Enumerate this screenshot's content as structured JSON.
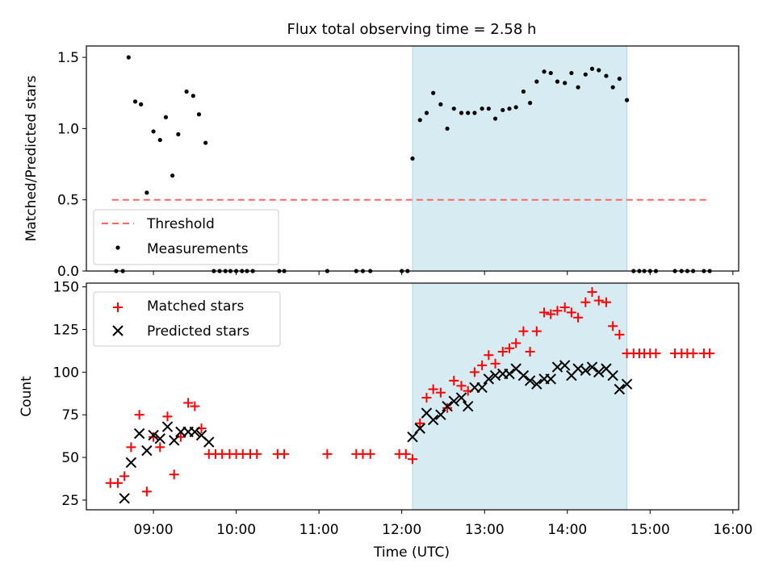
{
  "figure": {
    "title": "Flux total observing time = 2.58 h",
    "xlabel": "Time (UTC)",
    "x_tick_labels": [
      "09:00",
      "10:00",
      "11:00",
      "12:00",
      "13:00",
      "14:00",
      "15:00",
      "16:00"
    ]
  },
  "chart_data": [
    {
      "type": "scatter",
      "x_unit": "hours UTC (decimal)",
      "ylabel": "Matched/Predicted stars",
      "ylim": [
        0,
        1.58
      ],
      "xlim": [
        8.19,
        16.07
      ],
      "y_ticks": [
        0.0,
        0.5,
        1.0,
        1.5
      ],
      "y_tick_labels": [
        "0.0",
        "0.5",
        "1.0",
        "1.5"
      ],
      "shaded_interval": {
        "x": [
          12.13,
          14.72
        ],
        "color": "#add8e6"
      },
      "threshold": {
        "name": "Threshold",
        "y": 0.5,
        "x_range": [
          8.5,
          15.72
        ],
        "color": "#ff6666"
      },
      "series": [
        {
          "name": "Measurements",
          "marker": "dot",
          "color": "#000000",
          "points": [
            [
              8.55,
              0
            ],
            [
              8.63,
              0
            ],
            [
              8.7,
              1.5
            ],
            [
              8.78,
              1.19
            ],
            [
              8.85,
              1.17
            ],
            [
              8.92,
              0.55
            ],
            [
              9.0,
              0.98
            ],
            [
              9.08,
              0.92
            ],
            [
              9.15,
              1.08
            ],
            [
              9.23,
              0.67
            ],
            [
              9.3,
              0.96
            ],
            [
              9.4,
              1.26
            ],
            [
              9.48,
              1.23
            ],
            [
              9.55,
              1.1
            ],
            [
              9.63,
              0.9
            ],
            [
              9.73,
              0
            ],
            [
              9.8,
              0
            ],
            [
              9.87,
              0
            ],
            [
              9.93,
              0
            ],
            [
              10.0,
              0
            ],
            [
              10.07,
              0
            ],
            [
              10.13,
              0
            ],
            [
              10.2,
              0
            ],
            [
              10.52,
              0
            ],
            [
              10.58,
              0
            ],
            [
              11.1,
              0
            ],
            [
              11.45,
              0
            ],
            [
              11.53,
              0
            ],
            [
              11.62,
              0
            ],
            [
              12.0,
              0
            ],
            [
              12.07,
              0
            ],
            [
              12.13,
              0.79
            ],
            [
              12.22,
              1.06
            ],
            [
              12.3,
              1.11
            ],
            [
              12.38,
              1.25
            ],
            [
              12.47,
              1.17
            ],
            [
              12.55,
              1.0
            ],
            [
              12.63,
              1.14
            ],
            [
              12.72,
              1.11
            ],
            [
              12.8,
              1.11
            ],
            [
              12.88,
              1.11
            ],
            [
              12.97,
              1.14
            ],
            [
              13.05,
              1.14
            ],
            [
              13.13,
              1.07
            ],
            [
              13.22,
              1.13
            ],
            [
              13.3,
              1.14
            ],
            [
              13.38,
              1.15
            ],
            [
              13.47,
              1.26
            ],
            [
              13.55,
              1.18
            ],
            [
              13.63,
              1.33
            ],
            [
              13.72,
              1.4
            ],
            [
              13.8,
              1.39
            ],
            [
              13.88,
              1.33
            ],
            [
              13.97,
              1.32
            ],
            [
              14.05,
              1.39
            ],
            [
              14.13,
              1.29
            ],
            [
              14.22,
              1.38
            ],
            [
              14.3,
              1.42
            ],
            [
              14.38,
              1.41
            ],
            [
              14.47,
              1.37
            ],
            [
              14.55,
              1.29
            ],
            [
              14.63,
              1.35
            ],
            [
              14.72,
              1.2
            ],
            [
              14.8,
              0
            ],
            [
              14.87,
              0
            ],
            [
              14.93,
              0
            ],
            [
              15.0,
              0
            ],
            [
              15.07,
              0
            ],
            [
              15.3,
              0
            ],
            [
              15.38,
              0
            ],
            [
              15.45,
              0
            ],
            [
              15.52,
              0
            ],
            [
              15.65,
              0
            ],
            [
              15.72,
              0
            ]
          ]
        }
      ],
      "legend": {
        "location": "lower-left",
        "entries": [
          "Threshold",
          "Measurements"
        ]
      }
    },
    {
      "type": "scatter",
      "x_unit": "hours UTC (decimal)",
      "ylabel": "Count",
      "ylim": [
        19.3,
        152.2
      ],
      "xlim": [
        8.19,
        16.07
      ],
      "y_ticks": [
        25,
        50,
        75,
        100,
        125,
        150
      ],
      "y_tick_labels": [
        "25",
        "50",
        "75",
        "100",
        "125",
        "150"
      ],
      "shaded_interval": {
        "x": [
          12.13,
          14.72
        ],
        "color": "#add8e6"
      },
      "series": [
        {
          "name": "Matched stars",
          "marker": "plus",
          "color": "#ff0000",
          "points": [
            [
              8.48,
              35
            ],
            [
              8.57,
              35
            ],
            [
              8.65,
              39
            ],
            [
              8.73,
              56
            ],
            [
              8.83,
              75
            ],
            [
              8.92,
              30
            ],
            [
              9.0,
              62
            ],
            [
              9.08,
              56
            ],
            [
              9.17,
              74
            ],
            [
              9.25,
              40
            ],
            [
              9.33,
              62
            ],
            [
              9.42,
              82
            ],
            [
              9.5,
              80
            ],
            [
              9.58,
              67
            ],
            [
              9.67,
              52
            ],
            [
              9.75,
              52
            ],
            [
              9.83,
              52
            ],
            [
              9.92,
              52
            ],
            [
              10.0,
              52
            ],
            [
              10.08,
              52
            ],
            [
              10.17,
              52
            ],
            [
              10.25,
              52
            ],
            [
              10.5,
              52
            ],
            [
              10.58,
              52
            ],
            [
              11.1,
              52
            ],
            [
              11.45,
              52
            ],
            [
              11.53,
              52
            ],
            [
              11.62,
              52
            ],
            [
              11.97,
              52
            ],
            [
              12.05,
              52
            ],
            [
              12.13,
              49
            ],
            [
              12.22,
              70
            ],
            [
              12.3,
              85
            ],
            [
              12.38,
              90
            ],
            [
              12.47,
              88
            ],
            [
              12.55,
              79
            ],
            [
              12.63,
              95
            ],
            [
              12.72,
              92
            ],
            [
              12.8,
              89
            ],
            [
              12.88,
              100
            ],
            [
              12.97,
              104
            ],
            [
              13.05,
              110
            ],
            [
              13.13,
              105
            ],
            [
              13.22,
              112
            ],
            [
              13.3,
              114
            ],
            [
              13.38,
              117
            ],
            [
              13.47,
              124
            ],
            [
              13.55,
              112
            ],
            [
              13.63,
              124
            ],
            [
              13.72,
              135
            ],
            [
              13.8,
              134
            ],
            [
              13.88,
              136
            ],
            [
              13.97,
              138
            ],
            [
              14.05,
              135
            ],
            [
              14.13,
              132
            ],
            [
              14.22,
              141
            ],
            [
              14.3,
              147
            ],
            [
              14.38,
              142
            ],
            [
              14.47,
              141
            ],
            [
              14.55,
              127
            ],
            [
              14.63,
              122
            ],
            [
              14.72,
              111
            ],
            [
              14.8,
              111
            ],
            [
              14.87,
              111
            ],
            [
              14.93,
              111
            ],
            [
              15.0,
              111
            ],
            [
              15.07,
              111
            ],
            [
              15.3,
              111
            ],
            [
              15.38,
              111
            ],
            [
              15.45,
              111
            ],
            [
              15.52,
              111
            ],
            [
              15.65,
              111
            ],
            [
              15.72,
              111
            ]
          ]
        },
        {
          "name": "Predicted stars",
          "marker": "x",
          "color": "#000000",
          "points": [
            [
              8.65,
              26
            ],
            [
              8.73,
              47
            ],
            [
              8.83,
              64
            ],
            [
              8.92,
              54
            ],
            [
              9.0,
              63
            ],
            [
              9.08,
              61
            ],
            [
              9.17,
              68
            ],
            [
              9.25,
              60
            ],
            [
              9.33,
              65
            ],
            [
              9.42,
              65
            ],
            [
              9.5,
              65
            ],
            [
              9.58,
              63
            ],
            [
              9.67,
              59
            ],
            [
              12.13,
              62
            ],
            [
              12.22,
              67
            ],
            [
              12.3,
              76
            ],
            [
              12.38,
              72
            ],
            [
              12.47,
              75
            ],
            [
              12.55,
              80
            ],
            [
              12.63,
              83
            ],
            [
              12.72,
              85
            ],
            [
              12.8,
              80
            ],
            [
              12.88,
              91
            ],
            [
              12.97,
              91
            ],
            [
              13.05,
              96
            ],
            [
              13.13,
              98
            ],
            [
              13.22,
              99
            ],
            [
              13.3,
              99
            ],
            [
              13.38,
              102
            ],
            [
              13.47,
              98
            ],
            [
              13.55,
              95
            ],
            [
              13.63,
              93
            ],
            [
              13.72,
              96
            ],
            [
              13.8,
              96
            ],
            [
              13.88,
              103
            ],
            [
              13.97,
              104
            ],
            [
              14.05,
              98
            ],
            [
              14.13,
              102
            ],
            [
              14.22,
              101
            ],
            [
              14.3,
              103
            ],
            [
              14.38,
              100
            ],
            [
              14.47,
              102
            ],
            [
              14.55,
              98
            ],
            [
              14.63,
              90
            ],
            [
              14.72,
              93
            ]
          ]
        }
      ],
      "legend": {
        "location": "upper-left",
        "entries": [
          "Matched stars",
          "Predicted stars"
        ]
      }
    }
  ]
}
